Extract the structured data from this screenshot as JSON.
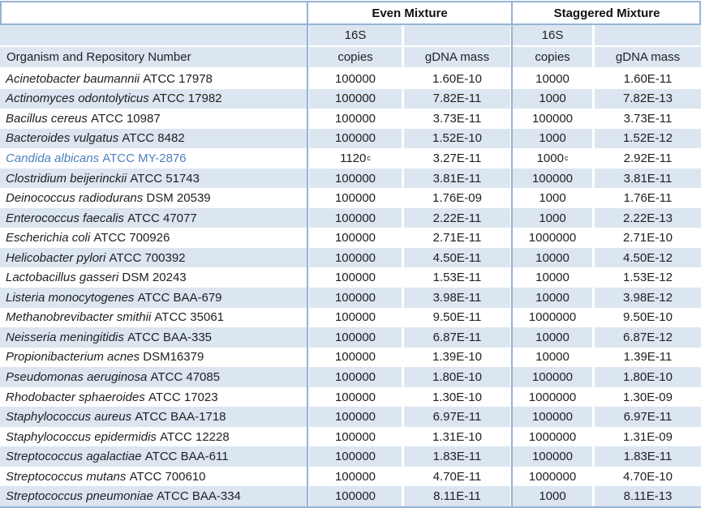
{
  "table": {
    "column_group_headers": {
      "even": "Even Mixture",
      "staggered": "Staggered Mixture"
    },
    "organism_header": "Organism and Repository Number",
    "subheaders": {
      "copies_line1": "16S",
      "copies_line2": "copies",
      "gdna": "gDNA mass"
    },
    "footnote_marker": "c",
    "rows": [
      {
        "species": "Acinetobacter baumannii",
        "repo": "ATCC 17978",
        "even_copies": "100000",
        "even_mass": "1.60E-10",
        "stag_copies": "10000",
        "stag_mass": "1.60E-11",
        "highlight": false
      },
      {
        "species": "Actinomyces odontolyticus",
        "repo": "ATCC 17982",
        "even_copies": "100000",
        "even_mass": "7.82E-11",
        "stag_copies": "1000",
        "stag_mass": "7.82E-13",
        "highlight": false
      },
      {
        "species": "Bacillus cereus",
        "repo": "ATCC 10987",
        "even_copies": "100000",
        "even_mass": "3.73E-11",
        "stag_copies": "100000",
        "stag_mass": "3.73E-11",
        "highlight": false
      },
      {
        "species": "Bacteroides vulgatus",
        "repo": "ATCC 8482",
        "even_copies": "100000",
        "even_mass": "1.52E-10",
        "stag_copies": "1000",
        "stag_mass": "1.52E-12",
        "highlight": false
      },
      {
        "species": "Candida albicans",
        "repo": "ATCC MY-2876",
        "even_copies": "1120",
        "even_copies_sup": "c",
        "even_mass": "3.27E-11",
        "stag_copies": "1000",
        "stag_copies_sup": "c",
        "stag_mass": "2.92E-11",
        "highlight": true
      },
      {
        "species": "Clostridium beijerinckii",
        "repo": "ATCC 51743",
        "even_copies": "100000",
        "even_mass": "3.81E-11",
        "stag_copies": "100000",
        "stag_mass": "3.81E-11",
        "highlight": false
      },
      {
        "species": "Deinococcus radiodurans",
        "repo": "DSM 20539",
        "even_copies": "100000",
        "even_mass": "1.76E-09",
        "stag_copies": "1000",
        "stag_mass": "1.76E-11",
        "highlight": false
      },
      {
        "species": "Enterococcus faecalis",
        "repo": "ATCC 47077",
        "even_copies": "100000",
        "even_mass": "2.22E-11",
        "stag_copies": "1000",
        "stag_mass": "2.22E-13",
        "highlight": false
      },
      {
        "species": "Escherichia coli",
        "repo": "ATCC 700926",
        "even_copies": "100000",
        "even_mass": "2.71E-11",
        "stag_copies": "1000000",
        "stag_mass": "2.71E-10",
        "highlight": false
      },
      {
        "species": "Helicobacter pylori",
        "repo": "ATCC 700392",
        "even_copies": "100000",
        "even_mass": "4.50E-11",
        "stag_copies": "10000",
        "stag_mass": "4.50E-12",
        "highlight": false
      },
      {
        "species": "Lactobacillus gasseri",
        "repo": "DSM 20243",
        "even_copies": "100000",
        "even_mass": "1.53E-11",
        "stag_copies": "10000",
        "stag_mass": "1.53E-12",
        "highlight": false
      },
      {
        "species": "Listeria monocytogenes",
        "repo": "ATCC BAA-679",
        "even_copies": "100000",
        "even_mass": "3.98E-11",
        "stag_copies": "10000",
        "stag_mass": "3.98E-12",
        "highlight": false
      },
      {
        "species": "Methanobrevibacter smithii",
        "repo": "ATCC 35061",
        "even_copies": "100000",
        "even_mass": "9.50E-11",
        "stag_copies": "1000000",
        "stag_mass": "9.50E-10",
        "highlight": false
      },
      {
        "species": "Neisseria meningitidis",
        "repo": "ATCC BAA-335",
        "even_copies": "100000",
        "even_mass": "6.87E-11",
        "stag_copies": "10000",
        "stag_mass": "6.87E-12",
        "highlight": false
      },
      {
        "species": "Propionibacterium acnes",
        "repo": "DSM16379",
        "even_copies": "100000",
        "even_mass": "1.39E-10",
        "stag_copies": "10000",
        "stag_mass": "1.39E-11",
        "highlight": false
      },
      {
        "species": "Pseudomonas aeruginosa",
        "repo": "ATCC 47085",
        "even_copies": "100000",
        "even_mass": "1.80E-10",
        "stag_copies": "100000",
        "stag_mass": "1.80E-10",
        "highlight": false
      },
      {
        "species": "Rhodobacter sphaeroides",
        "repo": "ATCC 17023",
        "even_copies": "100000",
        "even_mass": "1.30E-10",
        "stag_copies": "1000000",
        "stag_mass": "1.30E-09",
        "highlight": false
      },
      {
        "species": "Staphylococcus aureus",
        "repo": "ATCC BAA-1718",
        "even_copies": "100000",
        "even_mass": "6.97E-11",
        "stag_copies": "100000",
        "stag_mass": "6.97E-11",
        "highlight": false
      },
      {
        "species": "Staphylococcus epidermidis",
        "repo": "ATCC 12228",
        "even_copies": "100000",
        "even_mass": "1.31E-10",
        "stag_copies": "1000000",
        "stag_mass": "1.31E-09",
        "highlight": false
      },
      {
        "species": "Streptococcus agalactiae",
        "repo": "ATCC BAA-611",
        "even_copies": "100000",
        "even_mass": "1.83E-11",
        "stag_copies": "100000",
        "stag_mass": "1.83E-11",
        "highlight": false
      },
      {
        "species": "Streptococcus mutans",
        "repo": "ATCC 700610",
        "even_copies": "100000",
        "even_mass": "4.70E-11",
        "stag_copies": "1000000",
        "stag_mass": "4.70E-10",
        "highlight": false
      },
      {
        "species": "Streptococcus pneumoniae",
        "repo": "ATCC BAA-334",
        "even_copies": "100000",
        "even_mass": "8.11E-11",
        "stag_copies": "1000",
        "stag_mass": "8.11E-13",
        "highlight": false
      }
    ]
  },
  "colors": {
    "row_shade": "#dce6f1",
    "border_blue": "#95b3d7",
    "highlight_text": "#4f81bd"
  }
}
